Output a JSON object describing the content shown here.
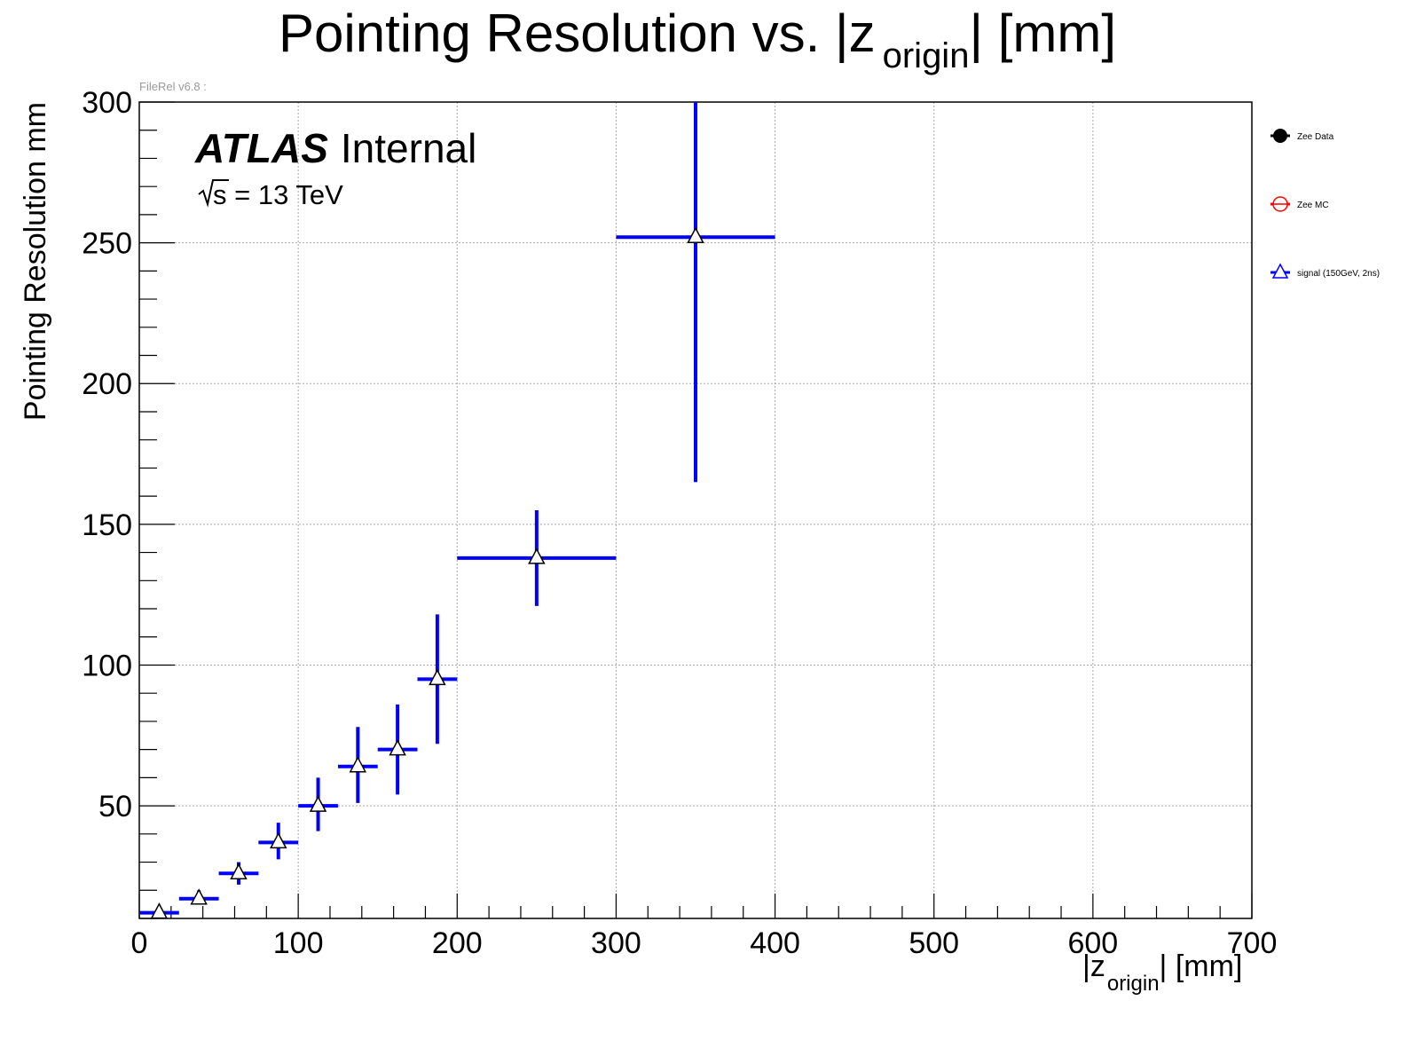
{
  "title": {
    "main": "Pointing Resolution vs. |z",
    "sub": "origin",
    "tail": "| [mm]"
  },
  "file_tag": "FileRel v6.8 :",
  "atlas": {
    "bold": "ATLAS",
    "label": "Internal",
    "energy": "s = 13 TeV"
  },
  "legend": [
    {
      "label": "Zee Data",
      "color": "#000000",
      "marker": "filled-circle"
    },
    {
      "label": "Zee MC",
      "color": "#ff0000",
      "marker": "open-circle"
    },
    {
      "label": "signal (150GeV, 2ns)",
      "color": "#0000ff",
      "marker": "open-triangle"
    }
  ],
  "chart_data": {
    "type": "scatter",
    "title": "Pointing Resolution vs. |z origin| [mm]",
    "xlabel": {
      "main": "|z",
      "sub": "origin",
      "tail": "| [mm]"
    },
    "ylabel": "Pointing Resolution mm",
    "xlim": [
      0,
      700
    ],
    "ylim": [
      10,
      300
    ],
    "grid": true,
    "xticks": [
      0,
      100,
      200,
      300,
      400,
      500,
      600,
      700
    ],
    "xtick_labels": [
      "0",
      "100",
      "200",
      "300",
      "400",
      "500",
      "600",
      "700"
    ],
    "yticks": [
      50,
      100,
      150,
      200,
      250,
      300
    ],
    "ytick_labels": [
      "50",
      "100",
      "150",
      "200",
      "250",
      "300"
    ],
    "legend_position": "right",
    "series": [
      {
        "name": "signal (150GeV, 2ns)",
        "color": "#0000ff",
        "marker": "open-triangle",
        "points": [
          {
            "x": 12.5,
            "xlo": 0,
            "xhi": 25,
            "y": 12,
            "ylo": 11,
            "yhi": 13
          },
          {
            "x": 37.5,
            "xlo": 25,
            "xhi": 50,
            "y": 17,
            "ylo": 15,
            "yhi": 20
          },
          {
            "x": 62.5,
            "xlo": 50,
            "xhi": 75,
            "y": 26,
            "ylo": 22,
            "yhi": 30
          },
          {
            "x": 87.5,
            "xlo": 75,
            "xhi": 100,
            "y": 37,
            "ylo": 31,
            "yhi": 44
          },
          {
            "x": 112.5,
            "xlo": 100,
            "xhi": 125,
            "y": 50,
            "ylo": 41,
            "yhi": 60
          },
          {
            "x": 137.5,
            "xlo": 125,
            "xhi": 150,
            "y": 64,
            "ylo": 51,
            "yhi": 78
          },
          {
            "x": 162.5,
            "xlo": 150,
            "xhi": 175,
            "y": 70,
            "ylo": 54,
            "yhi": 86
          },
          {
            "x": 187.5,
            "xlo": 175,
            "xhi": 200,
            "y": 95,
            "ylo": 72,
            "yhi": 118
          },
          {
            "x": 250,
            "xlo": 200,
            "xhi": 300,
            "y": 138,
            "ylo": 121,
            "yhi": 155
          },
          {
            "x": 350,
            "xlo": 300,
            "xhi": 400,
            "y": 252,
            "ylo": 165,
            "yhi": 300
          }
        ]
      }
    ]
  }
}
